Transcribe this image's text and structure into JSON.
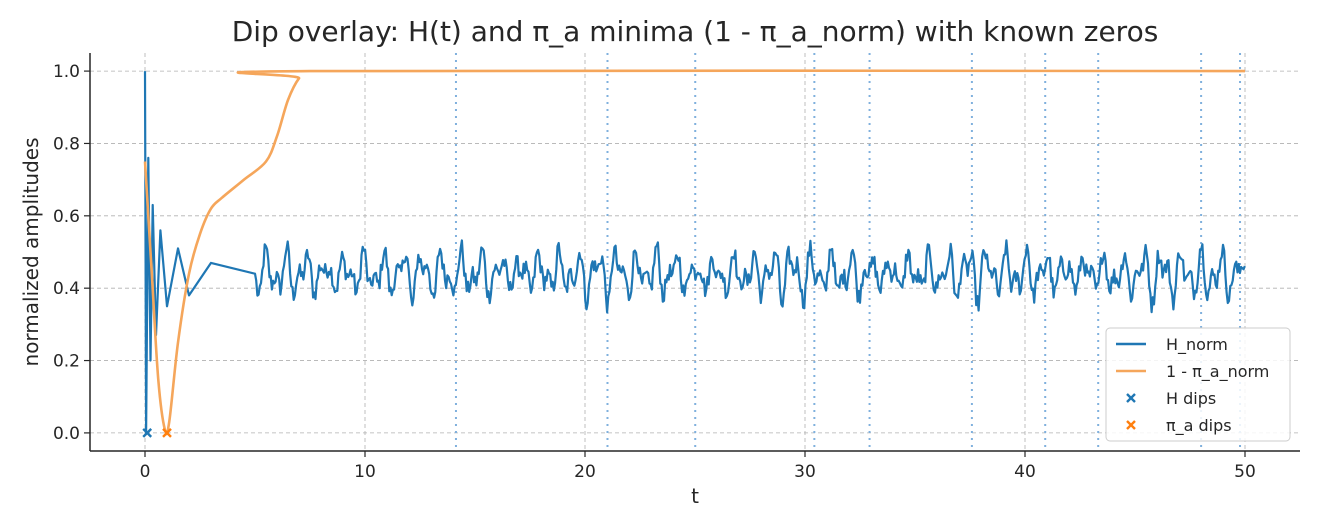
{
  "chart_data": {
    "type": "line",
    "title": "Dip overlay: H(t) and π_a minima (1 - π_a_norm) with known zeros",
    "xlabel": "t",
    "ylabel": "normalized amplitudes",
    "xlim": [
      -2.5,
      52.5
    ],
    "ylim": [
      -0.05,
      1.05
    ],
    "x_ticks": [
      0,
      10,
      20,
      30,
      40,
      50
    ],
    "y_ticks": [
      0.0,
      0.2,
      0.4,
      0.6,
      0.8,
      1.0
    ],
    "x_tick_labels": [
      "0",
      "10",
      "20",
      "30",
      "40",
      "50"
    ],
    "y_tick_labels": [
      "0.0",
      "0.2",
      "0.4",
      "0.6",
      "0.8",
      "1.0"
    ],
    "grid": true,
    "legend_position": "lower-right",
    "known_zeros": [
      14.1347,
      21.022,
      25.0109,
      30.4249,
      32.9351,
      37.5862,
      40.9187,
      43.3271,
      48.0052,
      49.7738
    ],
    "series": [
      {
        "name": "H_norm",
        "kind": "line",
        "color": "#1f77b4",
        "x_range": [
          0,
          50
        ],
        "baseline": 0.44,
        "amplitude_approx": 0.06,
        "keypoints": [
          {
            "x": 0.0,
            "y": 1.0
          },
          {
            "x": 0.05,
            "y": 0.0
          },
          {
            "x": 0.15,
            "y": 0.76
          },
          {
            "x": 0.25,
            "y": 0.2
          },
          {
            "x": 0.35,
            "y": 0.63
          },
          {
            "x": 0.5,
            "y": 0.27
          },
          {
            "x": 0.7,
            "y": 0.56
          },
          {
            "x": 1.0,
            "y": 0.35
          },
          {
            "x": 1.5,
            "y": 0.51
          },
          {
            "x": 2.0,
            "y": 0.38
          },
          {
            "x": 3.0,
            "y": 0.47
          },
          {
            "x": 5.0,
            "y": 0.44
          }
        ]
      },
      {
        "name": "1 - π_a_norm",
        "kind": "line",
        "color": "#f5a65b",
        "points": [
          {
            "x": 0.0,
            "y": 0.75
          },
          {
            "x": 0.3,
            "y": 0.45
          },
          {
            "x": 0.6,
            "y": 0.15
          },
          {
            "x": 0.9,
            "y": 0.01
          },
          {
            "x": 1.1,
            "y": 0.03
          },
          {
            "x": 1.5,
            "y": 0.25
          },
          {
            "x": 2.0,
            "y": 0.44
          },
          {
            "x": 2.5,
            "y": 0.55
          },
          {
            "x": 3.0,
            "y": 0.62
          },
          {
            "x": 3.5,
            "y": 0.65
          },
          {
            "x": 4.5,
            "y": 0.7
          },
          {
            "x": 5.5,
            "y": 0.75
          },
          {
            "x": 6.0,
            "y": 0.82
          },
          {
            "x": 6.5,
            "y": 0.92
          },
          {
            "x": 7.0,
            "y": 0.98
          },
          {
            "x": 7.5,
            "y": 1.0
          },
          {
            "x": 50.0,
            "y": 1.0
          }
        ]
      },
      {
        "name": "H dips",
        "kind": "scatter",
        "marker": "x",
        "color": "#1f77b4",
        "points": [
          {
            "x": 0.1,
            "y": 0.0
          }
        ]
      },
      {
        "name": "π_a dips",
        "kind": "scatter",
        "marker": "x",
        "color": "#ff7f0e",
        "points": [
          {
            "x": 1.0,
            "y": 0.0
          }
        ]
      }
    ]
  }
}
